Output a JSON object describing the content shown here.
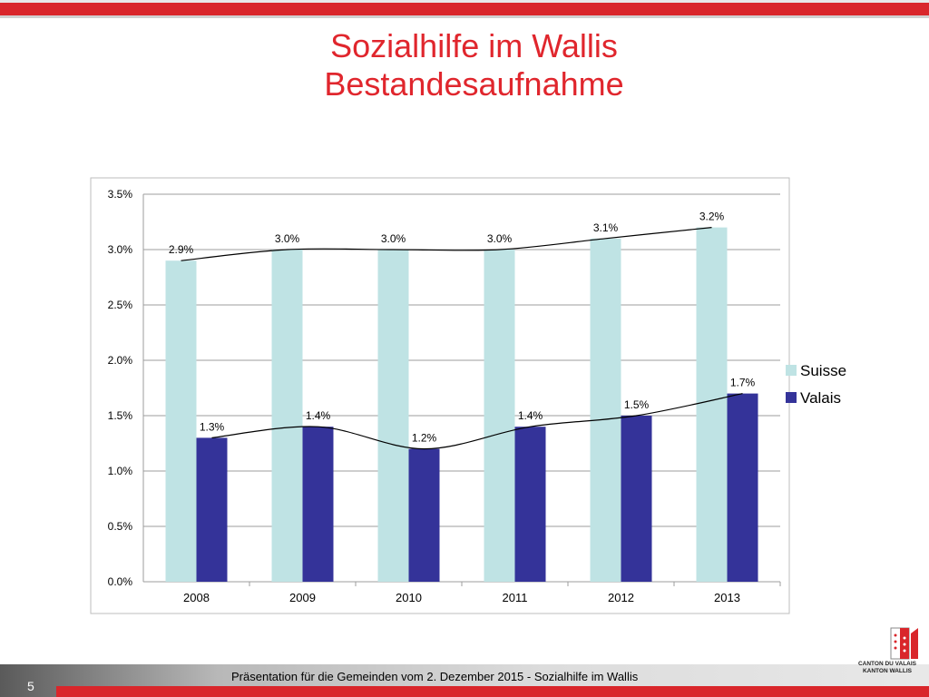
{
  "slide": {
    "title_line1": "Sozialhilfe im Wallis",
    "title_line2": "Bestandesaufnahme",
    "page_number": "5",
    "footer_text": "Präsentation für die Gemeinden vom 2. Dezember 2015 - Sozialhilfe im Wallis",
    "logo_line1": "CANTON DU VALAIS",
    "logo_line2": "KANTON WALLIS"
  },
  "colors": {
    "title": "#e0262d",
    "suisse": "#bfe3e4",
    "valais": "#343399",
    "grid": "#9c9c9c",
    "accent_red": "#d9262b"
  },
  "chart_data": {
    "type": "bar",
    "categories": [
      "2008",
      "2009",
      "2010",
      "2011",
      "2012",
      "2013"
    ],
    "series": [
      {
        "name": "Suisse",
        "values": [
          2.9,
          3.0,
          3.0,
          3.0,
          3.1,
          3.2
        ],
        "labels": [
          "2.9%",
          "3.0%",
          "3.0%",
          "3.0%",
          "3.1%",
          "3.2%"
        ]
      },
      {
        "name": "Valais",
        "values": [
          1.3,
          1.4,
          1.2,
          1.4,
          1.5,
          1.7
        ],
        "labels": [
          "1.3%",
          "1.4%",
          "1.2%",
          "1.4%",
          "1.5%",
          "1.7%"
        ]
      }
    ],
    "ylim": [
      0,
      3.5
    ],
    "yticks": [
      0,
      0.5,
      1.0,
      1.5,
      2.0,
      2.5,
      3.0,
      3.5
    ],
    "ytick_labels": [
      "0.0%",
      "0.5%",
      "1.0%",
      "1.5%",
      "2.0%",
      "2.5%",
      "3.0%",
      "3.5%"
    ],
    "trendlines": true,
    "grid": true,
    "legend_position": "right"
  }
}
